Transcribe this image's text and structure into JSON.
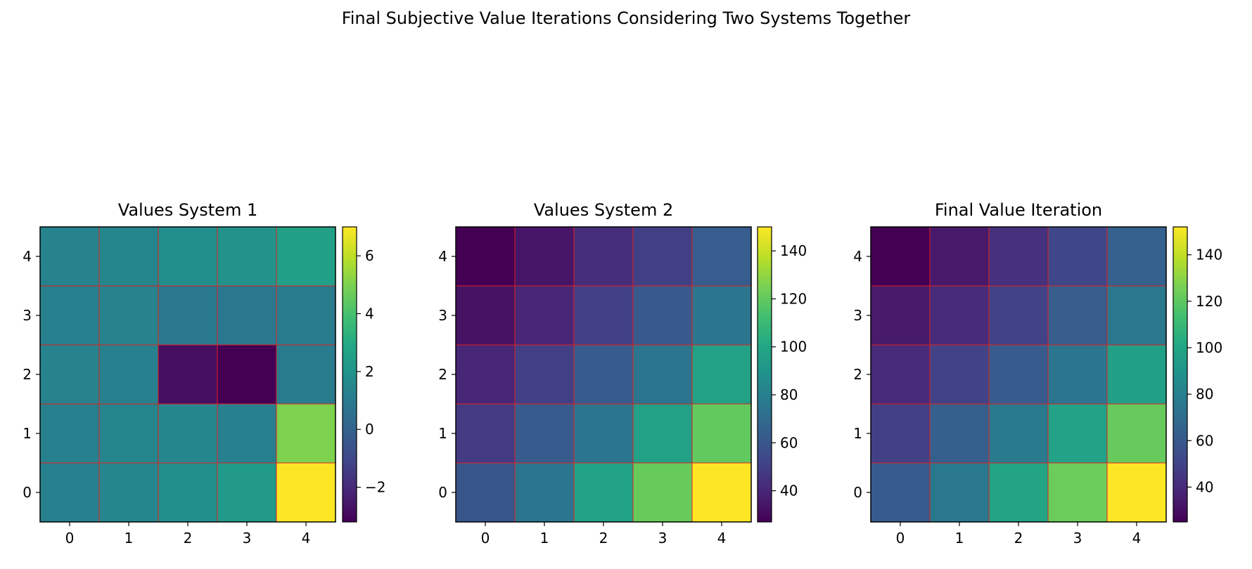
{
  "title": "Final Subjective Value Iterations Considering Two Systems Together",
  "chart_data": [
    {
      "type": "heatmap",
      "title": "Values System 1",
      "x": [
        0,
        1,
        2,
        3,
        4
      ],
      "y": [
        0,
        1,
        2,
        3,
        4
      ],
      "x_ticks": [
        "0",
        "1",
        "2",
        "3",
        "4"
      ],
      "y_ticks": [
        "0",
        "1",
        "2",
        "3",
        "4"
      ],
      "values": [
        [
          1.2,
          1.5,
          1.8,
          2.3,
          7.0
        ],
        [
          1.2,
          1.4,
          1.5,
          1.2,
          5.0
        ],
        [
          1.3,
          1.2,
          -2.8,
          -3.2,
          1.0
        ],
        [
          1.2,
          1.3,
          0.9,
          0.9,
          1.0
        ],
        [
          1.3,
          1.4,
          1.8,
          2.0,
          2.5
        ]
      ],
      "colormap": "viridis",
      "vmin": -3.2,
      "vmax": 7.0,
      "colorbar_ticks": [
        -2,
        0,
        2,
        4,
        6
      ],
      "colorbar_labels": [
        "−2",
        "0",
        "2",
        "4",
        "6"
      ],
      "grid": true,
      "grid_color": "#e02020"
    },
    {
      "type": "heatmap",
      "title": "Values System 2",
      "x": [
        0,
        1,
        2,
        3,
        4
      ],
      "y": [
        0,
        1,
        2,
        3,
        4
      ],
      "x_ticks": [
        "0",
        "1",
        "2",
        "3",
        "4"
      ],
      "y_ticks": [
        "0",
        "1",
        "2",
        "3",
        "4"
      ],
      "values": [
        [
          60,
          75,
          98,
          121,
          150
        ],
        [
          48,
          62,
          75,
          97,
          120
        ],
        [
          40,
          50,
          62,
          75,
          97
        ],
        [
          33,
          40,
          50,
          61,
          75
        ],
        [
          27,
          34,
          43,
          50,
          63
        ]
      ],
      "colormap": "viridis",
      "vmin": 27,
      "vmax": 150,
      "colorbar_ticks": [
        40,
        60,
        80,
        100,
        120,
        140
      ],
      "colorbar_labels": [
        "40",
        "60",
        "80",
        "100",
        "120",
        "140"
      ],
      "grid": true,
      "grid_color": "#e02020"
    },
    {
      "type": "heatmap",
      "title": "Final Value Iteration",
      "x": [
        0,
        1,
        2,
        3,
        4
      ],
      "y": [
        0,
        1,
        2,
        3,
        4
      ],
      "x_ticks": [
        "0",
        "1",
        "2",
        "3",
        "4"
      ],
      "y_ticks": [
        "0",
        "1",
        "2",
        "3",
        "4"
      ],
      "values": [
        [
          61,
          76,
          99,
          123,
          152
        ],
        [
          49,
          63,
          77,
          98,
          122
        ],
        [
          40,
          50,
          61,
          75,
          97
        ],
        [
          34,
          41,
          50,
          62,
          76
        ],
        [
          25,
          34,
          43,
          52,
          64
        ]
      ],
      "colormap": "viridis",
      "vmin": 25,
      "vmax": 152,
      "colorbar_ticks": [
        40,
        60,
        80,
        100,
        120,
        140
      ],
      "colorbar_labels": [
        "40",
        "60",
        "80",
        "100",
        "120",
        "140"
      ],
      "grid": true,
      "grid_color": "#e02020"
    }
  ]
}
